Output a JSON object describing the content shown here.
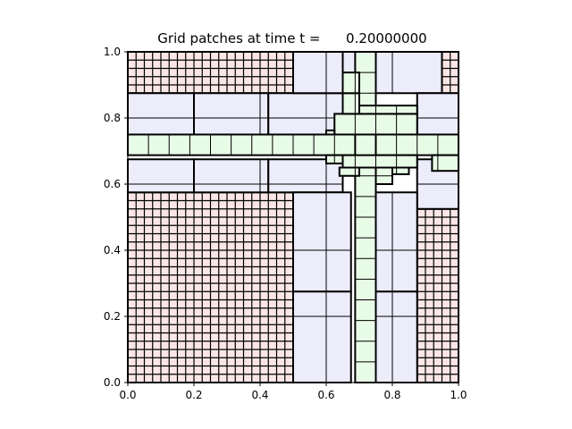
{
  "chart_data": {
    "type": "grid-patches",
    "title": "Grid patches at time t =      0.20000000",
    "xlim": [
      0.0,
      1.0
    ],
    "ylim": [
      0.0,
      1.0
    ],
    "xticks": [
      "0.0",
      "0.2",
      "0.4",
      "0.6",
      "0.8",
      "1.0"
    ],
    "yticks": [
      "0.0",
      "0.2",
      "0.4",
      "0.6",
      "0.8",
      "1.0"
    ],
    "grid": false,
    "levels": [
      {
        "level": 1,
        "color": "#fbe6e6",
        "cell": 0.025
      },
      {
        "level": 2,
        "color": "#ececfb",
        "cell": 0.2
      },
      {
        "level": 3,
        "color": "#e8fbe6",
        "cell": 0.0625
      }
    ],
    "patches": [
      {
        "level": 1,
        "x0": 0.0,
        "x1": 0.5,
        "y0": 0.875,
        "y1": 1.0
      },
      {
        "level": 1,
        "x0": 0.0,
        "x1": 0.5,
        "y0": 0.0,
        "y1": 0.575
      },
      {
        "level": 1,
        "x0": 0.875,
        "x1": 1.0,
        "y0": 0.875,
        "y1": 1.0
      },
      {
        "level": 1,
        "x0": 0.875,
        "x1": 1.0,
        "y0": 0.0,
        "y1": 0.525
      },
      {
        "level": 2,
        "x0": 0.0,
        "x1": 0.2,
        "y0": 0.75,
        "y1": 0.875
      },
      {
        "level": 2,
        "x0": 0.2,
        "x1": 0.425,
        "y0": 0.75,
        "y1": 0.875
      },
      {
        "level": 2,
        "x0": 0.425,
        "x1": 0.65,
        "y0": 0.75,
        "y1": 0.875
      },
      {
        "level": 2,
        "x0": 0.5,
        "x1": 0.65,
        "y0": 0.875,
        "y1": 1.0
      },
      {
        "level": 2,
        "x0": 0.725,
        "x1": 0.95,
        "y0": 0.875,
        "y1": 1.0
      },
      {
        "level": 2,
        "x0": 0.65,
        "x1": 0.725,
        "y0": 0.875,
        "y1": 1.0
      },
      {
        "level": 2,
        "x0": 0.875,
        "x1": 1.0,
        "y0": 0.75,
        "y1": 0.875
      },
      {
        "level": 2,
        "x0": 0.0,
        "x1": 0.2,
        "y0": 0.575,
        "y1": 0.675
      },
      {
        "level": 2,
        "x0": 0.2,
        "x1": 0.425,
        "y0": 0.575,
        "y1": 0.675
      },
      {
        "level": 2,
        "x0": 0.425,
        "x1": 0.65,
        "y0": 0.575,
        "y1": 0.675
      },
      {
        "level": 2,
        "x0": 0.875,
        "x1": 1.0,
        "y0": 0.525,
        "y1": 0.675
      },
      {
        "level": 2,
        "x0": 0.5,
        "x1": 0.675,
        "y0": 0.275,
        "y1": 0.575
      },
      {
        "level": 2,
        "x0": 0.5,
        "x1": 0.675,
        "y0": 0.0,
        "y1": 0.275
      },
      {
        "level": 2,
        "x0": 0.75,
        "x1": 0.875,
        "y0": 0.275,
        "y1": 0.575
      },
      {
        "level": 2,
        "x0": 0.75,
        "x1": 0.875,
        "y0": 0.0,
        "y1": 0.275
      },
      {
        "level": 3,
        "x0": 0.0,
        "x1": 1.0,
        "y0": 0.6875,
        "y1": 0.75
      },
      {
        "level": 3,
        "x0": 0.6875,
        "x1": 0.75,
        "y0": 0.0,
        "y1": 1.0
      },
      {
        "level": 3,
        "x0": 0.625,
        "x1": 0.875,
        "y0": 0.75,
        "y1": 0.8125
      },
      {
        "level": 3,
        "x0": 0.7,
        "x1": 0.875,
        "y0": 0.8125,
        "y1": 0.8375
      },
      {
        "level": 3,
        "x0": 0.65,
        "x1": 0.7,
        "y0": 0.8125,
        "y1": 0.875
      },
      {
        "level": 3,
        "x0": 0.6,
        "x1": 0.625,
        "y0": 0.75,
        "y1": 0.7625
      },
      {
        "level": 3,
        "x0": 0.65,
        "x1": 0.875,
        "y0": 0.65,
        "y1": 0.6875
      },
      {
        "level": 3,
        "x0": 0.6,
        "x1": 0.65,
        "y0": 0.6625,
        "y1": 0.6875
      },
      {
        "level": 3,
        "x0": 0.64,
        "x1": 0.7,
        "y0": 0.625,
        "y1": 0.65
      },
      {
        "level": 3,
        "x0": 0.75,
        "x1": 0.8,
        "y0": 0.6,
        "y1": 0.65
      },
      {
        "level": 3,
        "x0": 0.8,
        "x1": 0.85,
        "y0": 0.63,
        "y1": 0.65
      },
      {
        "level": 3,
        "x0": 0.92,
        "x1": 1.0,
        "y0": 0.64,
        "y1": 0.6875
      },
      {
        "level": 3,
        "x0": 0.65,
        "x1": 0.7,
        "y0": 0.875,
        "y1": 0.9375
      }
    ]
  }
}
